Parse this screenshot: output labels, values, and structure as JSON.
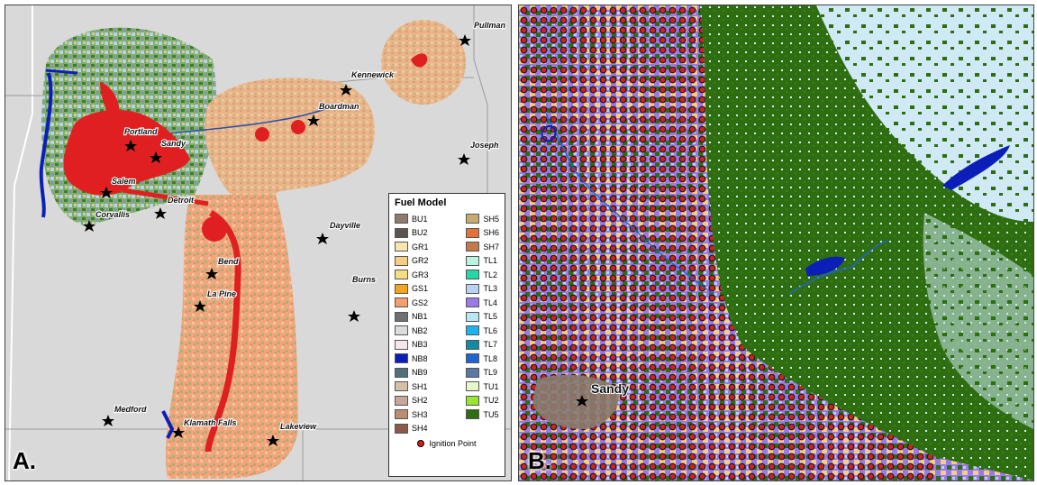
{
  "panel_a": {
    "letter": "A.",
    "cities": [
      {
        "name": "Pullman"
      },
      {
        "name": "Kennewick"
      },
      {
        "name": "Boardman"
      },
      {
        "name": "Portland"
      },
      {
        "name": "Sandy"
      },
      {
        "name": "Joseph"
      },
      {
        "name": "Salem"
      },
      {
        "name": "Detroit"
      },
      {
        "name": "Corvallis"
      },
      {
        "name": "Dayville"
      },
      {
        "name": "Bend"
      },
      {
        "name": "La Pine"
      },
      {
        "name": "Burns"
      },
      {
        "name": "Medford"
      },
      {
        "name": "Klamath Falls"
      },
      {
        "name": "Lakeview"
      }
    ],
    "legend": {
      "title": "Fuel Model",
      "left_column": [
        {
          "label": "BU1",
          "color": "#8c7b6e"
        },
        {
          "label": "BU2",
          "color": "#5c5450"
        },
        {
          "label": "GR1",
          "color": "#f7e6b0"
        },
        {
          "label": "GR2",
          "color": "#f5cd85"
        },
        {
          "label": "GR3",
          "color": "#f3de86"
        },
        {
          "label": "GS1",
          "color": "#f2a51e"
        },
        {
          "label": "GS2",
          "color": "#f2a06e"
        },
        {
          "label": "NB1",
          "color": "#707070"
        },
        {
          "label": "NB2",
          "color": "#dcdcdc"
        },
        {
          "label": "NB3",
          "color": "#f6e8ea"
        },
        {
          "label": "NB8",
          "color": "#0b1fb8"
        },
        {
          "label": "NB9",
          "color": "#52707a"
        },
        {
          "label": "SH1",
          "color": "#d5c0a5"
        },
        {
          "label": "SH2",
          "color": "#c7a798"
        },
        {
          "label": "SH3",
          "color": "#b88f70"
        },
        {
          "label": "SH4",
          "color": "#8a5b4a"
        }
      ],
      "right_column": [
        {
          "label": "SH5",
          "color": "#c8ab70"
        },
        {
          "label": "SH6",
          "color": "#e6703a"
        },
        {
          "label": "SH7",
          "color": "#c47a48"
        },
        {
          "label": "TL1",
          "color": "#b8f5e0"
        },
        {
          "label": "TL2",
          "color": "#20d9a5"
        },
        {
          "label": "TL3",
          "color": "#b7d3f2"
        },
        {
          "label": "TL4",
          "color": "#9a7ae6"
        },
        {
          "label": "TL5",
          "color": "#b8e6f5"
        },
        {
          "label": "TL6",
          "color": "#1ab4f0"
        },
        {
          "label": "TL7",
          "color": "#118aa5"
        },
        {
          "label": "TL8",
          "color": "#1e64d2"
        },
        {
          "label": "TL9",
          "color": "#5878a5"
        },
        {
          "label": "TU1",
          "color": "#e7f8c8"
        },
        {
          "label": "TU2",
          "color": "#96e632"
        },
        {
          "label": "TU5",
          "color": "#2e6e10"
        }
      ],
      "ignition_label": "Ignition Point",
      "ignition_color": "#d32020"
    }
  },
  "panel_b": {
    "letter": "B.",
    "city_label": "Sandy"
  }
}
